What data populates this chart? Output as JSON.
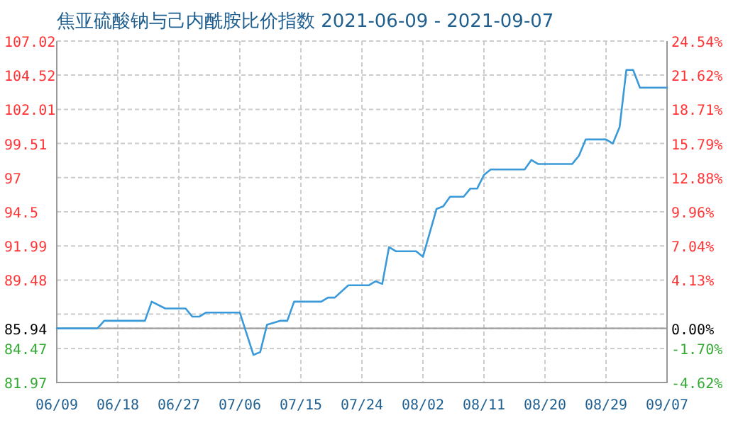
{
  "chart_data": {
    "type": "line",
    "title": "焦亚硫酸钠与己内酰胺比价指数 2021-06-09 - 2021-09-07",
    "x": [
      "2021-06-09",
      "2021-06-15",
      "2021-06-16",
      "2021-06-22",
      "2021-06-23",
      "2021-06-25",
      "2021-06-28",
      "2021-06-29",
      "2021-06-30",
      "2021-07-01",
      "2021-07-06",
      "2021-07-08",
      "2021-07-09",
      "2021-07-10",
      "2021-07-12",
      "2021-07-13",
      "2021-07-14",
      "2021-07-18",
      "2021-07-19",
      "2021-07-20",
      "2021-07-22",
      "2021-07-25",
      "2021-07-26",
      "2021-07-27",
      "2021-07-28",
      "2021-07-29",
      "2021-08-01",
      "2021-08-02",
      "2021-08-04",
      "2021-08-05",
      "2021-08-06",
      "2021-08-08",
      "2021-08-09",
      "2021-08-10",
      "2021-08-11",
      "2021-08-12",
      "2021-08-17",
      "2021-08-18",
      "2021-08-19",
      "2021-08-24",
      "2021-08-25",
      "2021-08-26",
      "2021-08-29",
      "2021-08-30",
      "2021-08-31",
      "2021-09-01",
      "2021-09-02",
      "2021-09-03",
      "2021-09-07"
    ],
    "series": [
      {
        "color": "#3a9ad9",
        "values": [
          85.94,
          85.94,
          86.5,
          86.5,
          87.9,
          87.4,
          87.4,
          86.8,
          86.8,
          87.1,
          87.1,
          84.0,
          84.2,
          86.2,
          86.5,
          86.5,
          87.9,
          87.9,
          88.2,
          88.2,
          89.1,
          89.1,
          89.4,
          89.2,
          91.9,
          91.6,
          91.6,
          91.2,
          94.7,
          94.9,
          95.6,
          95.6,
          96.2,
          96.2,
          97.2,
          97.6,
          97.6,
          98.3,
          98.0,
          98.0,
          98.6,
          99.8,
          99.8,
          99.5,
          100.7,
          104.9,
          104.9,
          103.6,
          103.6
        ]
      }
    ],
    "xlim": [
      "2021-06-09",
      "2021-09-07"
    ],
    "xticks": [
      {
        "value": "2021-06-09",
        "label": "06/09"
      },
      {
        "value": "2021-06-18",
        "label": "06/18"
      },
      {
        "value": "2021-06-27",
        "label": "06/27"
      },
      {
        "value": "2021-07-06",
        "label": "07/06"
      },
      {
        "value": "2021-07-15",
        "label": "07/15"
      },
      {
        "value": "2021-07-24",
        "label": "07/24"
      },
      {
        "value": "2021-08-02",
        "label": "08/02"
      },
      {
        "value": "2021-08-11",
        "label": "08/11"
      },
      {
        "value": "2021-08-20",
        "label": "08/20"
      },
      {
        "value": "2021-08-29",
        "label": "08/29"
      },
      {
        "value": "2021-09-07",
        "label": "09/07"
      }
    ],
    "ylim": [
      81.97,
      107.02
    ],
    "yticks": [
      81.97,
      84.47,
      85.94,
      {
        "value": 86.98,
        "label": null
      },
      89.48,
      91.99,
      94.5,
      97,
      99.51,
      102.01,
      104.52,
      107.02
    ],
    "y2lim": [
      -4.62,
      24.54
    ],
    "y2ticks": [
      {
        "value": -4.62,
        "label": "-4.62%"
      },
      {
        "value": -1.7,
        "label": "-1.70%"
      },
      {
        "value": 0,
        "label": "0.00%"
      },
      {
        "value": 4.13,
        "label": "4.13%"
      },
      {
        "value": 7.04,
        "label": "7.04%"
      },
      {
        "value": 9.96,
        "label": "9.96%"
      },
      {
        "value": 12.88,
        "label": "12.88%"
      },
      {
        "value": 15.79,
        "label": "15.79%"
      },
      {
        "value": 18.71,
        "label": "18.71%"
      },
      {
        "value": 21.62,
        "label": "21.62%"
      },
      {
        "value": 24.54,
        "label": "24.54%"
      }
    ],
    "ref_lines": [
      {
        "axis": "y",
        "value": 85.94,
        "color": "#999999"
      }
    ],
    "grid": true,
    "marker": "none",
    "line_style": "solid"
  }
}
